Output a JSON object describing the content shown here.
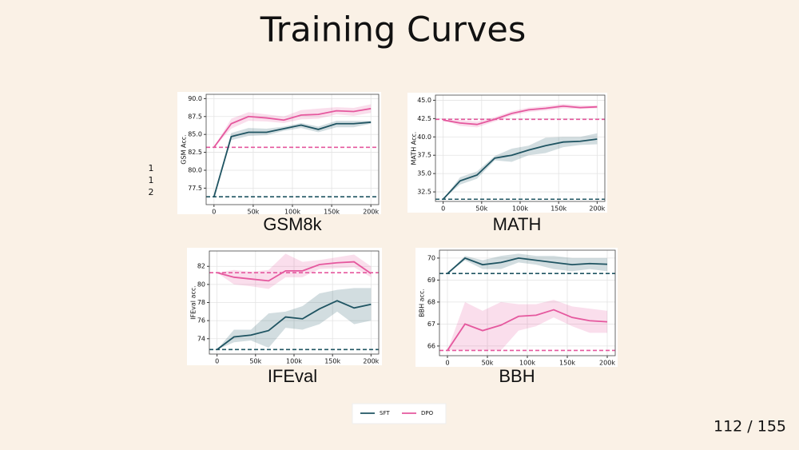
{
  "title": "Training Curves",
  "page_number": "112 / 155",
  "side_note": [
    "1",
    "1",
    "2"
  ],
  "chart_data": [
    {
      "type": "line",
      "title": "GSM8k",
      "ylabel": "GSM Acc.",
      "x": [
        0,
        22000,
        44000,
        67000,
        89000,
        111000,
        133000,
        156000,
        178000,
        200000
      ],
      "xlim": [
        -10000,
        210000
      ],
      "xticks": [
        0,
        {
          "value": 50000,
          "label": "50k"
        },
        {
          "value": 100000,
          "label": "100k"
        },
        {
          "value": 150000,
          "label": "150k"
        },
        {
          "value": 200000,
          "label": "200k"
        }
      ],
      "ylim": [
        75.2,
        90.6
      ],
      "yticks": [
        77.5,
        {
          "value": 80,
          "label": "80.0"
        },
        82.5,
        {
          "value": 85,
          "label": "85.0"
        },
        87.5,
        {
          "value": 90,
          "label": "90.0"
        }
      ],
      "grid": true,
      "series": [
        {
          "name": "SFT",
          "color": "#1f5462",
          "values": [
            76.3,
            84.7,
            85.3,
            85.3,
            85.8,
            86.3,
            85.7,
            86.5,
            86.5,
            86.7
          ],
          "lower": [
            76.3,
            84.2,
            84.8,
            84.9,
            85.5,
            85.9,
            85.3,
            86.0,
            86.0,
            86.5
          ],
          "upper": [
            76.3,
            85.2,
            85.9,
            85.8,
            86.1,
            86.6,
            86.1,
            86.9,
            86.9,
            86.9
          ]
        },
        {
          "name": "DPO",
          "color": "#e5589e",
          "values": [
            83.2,
            86.5,
            87.5,
            87.3,
            87.0,
            87.7,
            87.8,
            88.3,
            88.2,
            88.6
          ],
          "lower": [
            83.2,
            85.8,
            86.9,
            86.8,
            86.6,
            87.1,
            87.2,
            87.8,
            87.6,
            88.0
          ],
          "upper": [
            83.2,
            87.2,
            88.1,
            87.8,
            87.5,
            88.4,
            88.6,
            88.8,
            88.7,
            89.2
          ]
        }
      ],
      "hlines": [
        {
          "value": 83.2,
          "color": "#e5589e"
        },
        {
          "value": 76.3,
          "color": "#1f5462"
        }
      ]
    },
    {
      "type": "line",
      "title": "MATH",
      "ylabel": "MATH Acc.",
      "x": [
        0,
        22000,
        44000,
        67000,
        89000,
        111000,
        133000,
        156000,
        178000,
        200000
      ],
      "xlim": [
        -10000,
        210000
      ],
      "xticks": [
        0,
        {
          "value": 50000,
          "label": "50k"
        },
        {
          "value": 100000,
          "label": "100k"
        },
        {
          "value": 150000,
          "label": "150k"
        },
        {
          "value": 200000,
          "label": "200k"
        }
      ],
      "ylim": [
        31.2,
        45.7
      ],
      "yticks": [
        32.5,
        {
          "value": 35,
          "label": "35.0"
        },
        37.5,
        {
          "value": 40,
          "label": "40.0"
        },
        42.5,
        {
          "value": 45,
          "label": "45.0"
        }
      ],
      "grid": true,
      "series": [
        {
          "name": "SFT",
          "color": "#1f5462",
          "values": [
            31.5,
            34.0,
            34.8,
            37.1,
            37.5,
            38.2,
            38.8,
            39.3,
            39.4,
            39.7
          ],
          "lower": [
            31.5,
            33.5,
            34.3,
            36.8,
            36.6,
            37.5,
            37.8,
            38.6,
            38.9,
            39.0
          ],
          "upper": [
            31.5,
            34.5,
            35.3,
            37.4,
            38.4,
            38.8,
            39.9,
            40.0,
            40.0,
            40.5
          ]
        },
        {
          "name": "DPO",
          "color": "#e5589e",
          "values": [
            42.3,
            41.9,
            41.7,
            42.4,
            43.2,
            43.7,
            43.9,
            44.2,
            44.0,
            44.1
          ],
          "lower": [
            42.3,
            41.5,
            41.3,
            42.1,
            42.9,
            43.4,
            43.6,
            43.9,
            43.8,
            43.9
          ],
          "upper": [
            42.3,
            42.3,
            42.1,
            42.7,
            43.5,
            44.0,
            44.2,
            44.5,
            44.3,
            44.3
          ]
        }
      ],
      "hlines": [
        {
          "value": 42.4,
          "color": "#e5589e"
        },
        {
          "value": 31.5,
          "color": "#1f5462"
        }
      ]
    },
    {
      "type": "line",
      "title": "IFEval",
      "ylabel": "IFEval acc.",
      "x": [
        0,
        22000,
        44000,
        67000,
        89000,
        111000,
        133000,
        156000,
        178000,
        200000
      ],
      "xlim": [
        -10000,
        210000
      ],
      "xticks": [
        0,
        {
          "value": 50000,
          "label": "50k"
        },
        {
          "value": 100000,
          "label": "100k"
        },
        {
          "value": 150000,
          "label": "150k"
        },
        {
          "value": 200000,
          "label": "200k"
        }
      ],
      "ylim": [
        72.3,
        83.7
      ],
      "yticks": [
        74,
        76,
        78,
        80,
        82
      ],
      "grid": true,
      "series": [
        {
          "name": "SFT",
          "color": "#1f5462",
          "values": [
            72.8,
            74.2,
            74.4,
            74.9,
            76.4,
            76.2,
            77.3,
            78.2,
            77.4,
            77.8
          ],
          "lower": [
            72.8,
            73.6,
            73.8,
            73.0,
            75.2,
            75.0,
            75.6,
            77.0,
            75.6,
            76.0
          ],
          "upper": [
            72.8,
            75.0,
            75.0,
            76.8,
            77.0,
            77.6,
            79.0,
            79.4,
            79.6,
            79.6
          ]
        },
        {
          "name": "DPO",
          "color": "#e5589e",
          "values": [
            81.3,
            80.8,
            80.6,
            80.4,
            81.5,
            81.5,
            82.2,
            82.4,
            82.5,
            81.2
          ],
          "lower": [
            81.3,
            80.0,
            79.8,
            79.5,
            80.8,
            80.8,
            81.7,
            81.8,
            81.9,
            80.8
          ],
          "upper": [
            81.3,
            81.6,
            81.4,
            81.6,
            83.4,
            82.5,
            82.7,
            83.0,
            83.3,
            82.0
          ]
        }
      ],
      "hlines": [
        {
          "value": 81.3,
          "color": "#e5589e"
        },
        {
          "value": 72.8,
          "color": "#1f5462"
        }
      ]
    },
    {
      "type": "line",
      "title": "BBH",
      "ylabel": "BBH acc.",
      "x": [
        0,
        22000,
        44000,
        67000,
        89000,
        111000,
        133000,
        156000,
        178000,
        200000
      ],
      "xlim": [
        -10000,
        210000
      ],
      "xticks": [
        0,
        {
          "value": 50000,
          "label": "50k"
        },
        {
          "value": 100000,
          "label": "100k"
        },
        {
          "value": 150000,
          "label": "150k"
        },
        {
          "value": 200000,
          "label": "200k"
        }
      ],
      "ylim": [
        65.56,
        70.36
      ],
      "yticks": [
        66,
        67,
        68,
        69,
        70
      ],
      "grid": true,
      "series": [
        {
          "name": "SFT",
          "color": "#1f5462",
          "values": [
            69.3,
            70.0,
            69.7,
            69.8,
            70.0,
            69.9,
            69.8,
            69.7,
            69.75,
            69.72
          ],
          "lower": [
            69.3,
            69.9,
            69.5,
            69.5,
            69.8,
            69.7,
            69.5,
            69.4,
            69.5,
            69.4
          ],
          "upper": [
            69.3,
            70.1,
            69.9,
            70.1,
            70.2,
            70.1,
            70.1,
            70.0,
            70.0,
            70.0
          ]
        },
        {
          "name": "DPO",
          "color": "#e5589e",
          "values": [
            65.8,
            67.0,
            66.7,
            66.95,
            67.35,
            67.4,
            67.65,
            67.3,
            67.15,
            67.1
          ],
          "lower": [
            65.8,
            65.8,
            65.8,
            65.8,
            66.7,
            66.9,
            67.3,
            66.9,
            66.6,
            66.6
          ],
          "upper": [
            65.8,
            68.0,
            67.6,
            68.0,
            67.9,
            67.9,
            68.1,
            67.8,
            67.7,
            67.6
          ]
        }
      ],
      "hlines": [
        {
          "value": 69.3,
          "color": "#1f5462"
        },
        {
          "value": 65.8,
          "color": "#e5589e"
        }
      ]
    }
  ]
}
